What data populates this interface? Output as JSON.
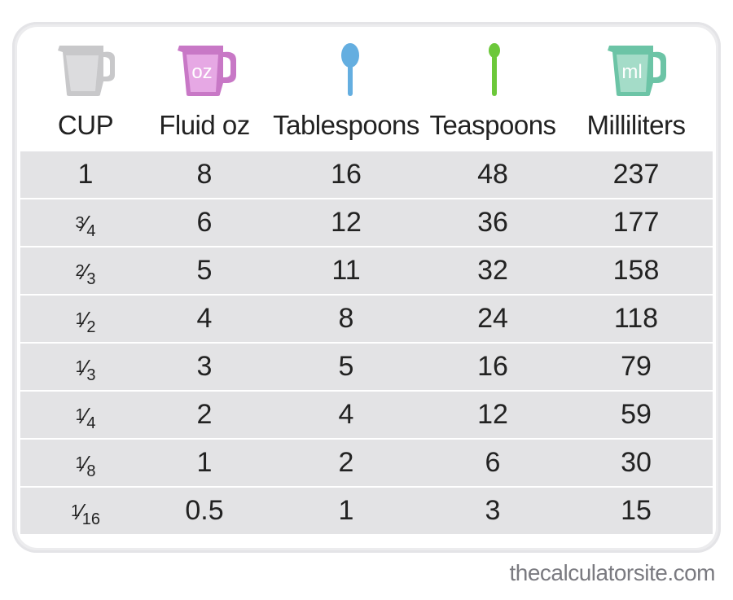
{
  "headers": {
    "cup": "CUP",
    "fluid_oz": "Fluid oz",
    "tablespoons": "Tablespoons",
    "teaspoons": "Teaspoons",
    "milliliters": "Milliliters"
  },
  "icons": {
    "cup": {
      "name": "measuring-cup-icon",
      "color": "#b8b8ba"
    },
    "fluid_oz": {
      "name": "oz-jug-icon",
      "label": "oz",
      "color": "#c878c6"
    },
    "tablespoons": {
      "name": "tablespoon-icon",
      "color": "#64aee0"
    },
    "teaspoons": {
      "name": "teaspoon-icon",
      "color": "#6cc83a"
    },
    "milliliters": {
      "name": "ml-jug-icon",
      "label": "ml",
      "color": "#6cc4a6"
    }
  },
  "rows": [
    {
      "cup": {
        "whole": "1"
      },
      "fluid_oz": "8",
      "tablespoons": "16",
      "teaspoons": "48",
      "milliliters": "237"
    },
    {
      "cup": {
        "num": "3",
        "den": "4"
      },
      "fluid_oz": "6",
      "tablespoons": "12",
      "teaspoons": "36",
      "milliliters": "177"
    },
    {
      "cup": {
        "num": "2",
        "den": "3"
      },
      "fluid_oz": "5",
      "tablespoons": "11",
      "teaspoons": "32",
      "milliliters": "158"
    },
    {
      "cup": {
        "num": "1",
        "den": "2"
      },
      "fluid_oz": "4",
      "tablespoons": "8",
      "teaspoons": "24",
      "milliliters": "118"
    },
    {
      "cup": {
        "num": "1",
        "den": "3"
      },
      "fluid_oz": "3",
      "tablespoons": "5",
      "teaspoons": "16",
      "milliliters": "79"
    },
    {
      "cup": {
        "num": "1",
        "den": "4"
      },
      "fluid_oz": "2",
      "tablespoons": "4",
      "teaspoons": "12",
      "milliliters": "59"
    },
    {
      "cup": {
        "num": "1",
        "den": "8"
      },
      "fluid_oz": "1",
      "tablespoons": "2",
      "teaspoons": "6",
      "milliliters": "30"
    },
    {
      "cup": {
        "num": "1",
        "den": "16"
      },
      "fluid_oz": "0.5",
      "tablespoons": "1",
      "teaspoons": "3",
      "milliliters": "15"
    }
  ],
  "credit": "thecalculatorsite.com"
}
